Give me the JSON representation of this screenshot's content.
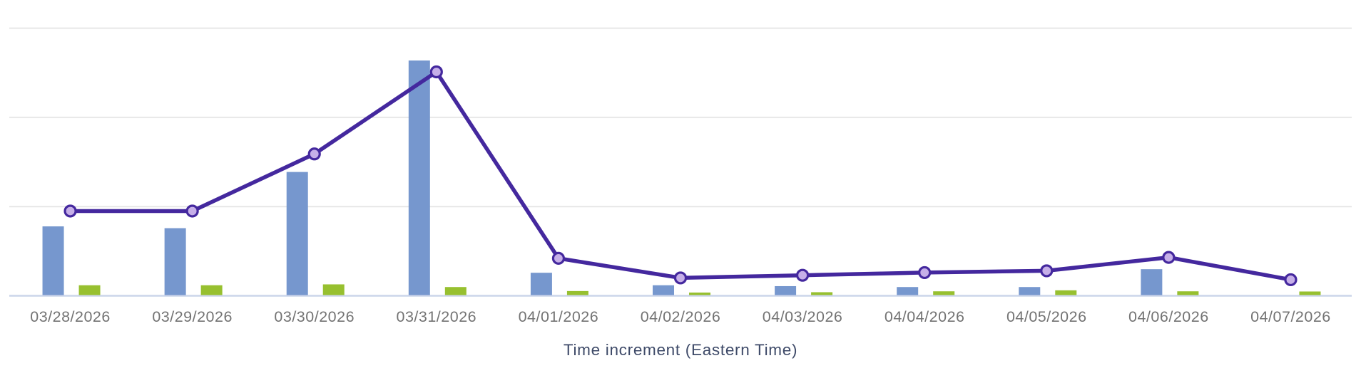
{
  "chart_data": {
    "type": "combo",
    "title": "",
    "xlabel": "Time increment (Eastern Time)",
    "ylabel": "",
    "categories": [
      "03/28/2026",
      "03/29/2026",
      "03/30/2026",
      "03/31/2026",
      "04/01/2026",
      "04/02/2026",
      "04/03/2026",
      "04/04/2026",
      "04/05/2026",
      "04/06/2026",
      "04/07/2026"
    ],
    "y_axis": {
      "tick_labels_visible": false,
      "min": 0,
      "gridline_count": 3,
      "max_in_gridline_units": 3,
      "note": "horizontal gridlines only, unlabeled; values below are estimated in gridline-spacing units"
    },
    "legend": "none",
    "series": [
      {
        "name": "blue-bars",
        "type": "bar",
        "color": "#7697ce",
        "values_gridline_units": [
          0.77,
          0.75,
          1.38,
          2.63,
          0.25,
          0.11,
          0.1,
          0.09,
          0.09,
          0.29,
          0
        ]
      },
      {
        "name": "green-bars",
        "type": "bar",
        "color": "#97c02f",
        "values_gridline_units": [
          0.11,
          0.11,
          0.12,
          0.09,
          0.045,
          0.028,
          0.032,
          0.042,
          0.053,
          0.042,
          0.04
        ]
      },
      {
        "name": "purple-line",
        "type": "line",
        "color": "#44289e",
        "marker_fill": "#c6afe8",
        "values_gridline_units": [
          0.95,
          0.95,
          1.59,
          2.51,
          0.42,
          0.2,
          0.23,
          0.26,
          0.28,
          0.43,
          0.18
        ]
      }
    ],
    "colors": {
      "gridline": "#e7e7e7",
      "baseline": "#ccd5ea",
      "tick_label": "#737373",
      "axis_title": "#3e4a68",
      "background": "#ffffff"
    }
  }
}
